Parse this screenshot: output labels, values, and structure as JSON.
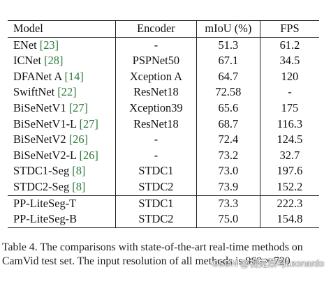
{
  "table": {
    "headers": {
      "model": "Model",
      "encoder": "Encoder",
      "miou": "mIoU (%)",
      "fps": "FPS"
    },
    "rows": [
      {
        "name": "ENet ",
        "ref": "[23]",
        "encoder": "-",
        "miou": "51.3",
        "fps": "61.2"
      },
      {
        "name": "ICNet ",
        "ref": "[28]",
        "encoder": "PSPNet50",
        "miou": "67.1",
        "fps": "34.5"
      },
      {
        "name": "DFANet A ",
        "ref": "[14]",
        "encoder": "Xception A",
        "miou": "64.7",
        "fps": "120"
      },
      {
        "name": "SwiftNet ",
        "ref": "[22]",
        "encoder": "ResNet18",
        "miou": "72.58",
        "fps": "-"
      },
      {
        "name": "BiSeNetV1 ",
        "ref": "[27]",
        "encoder": "Xception39",
        "miou": "65.6",
        "fps": "175"
      },
      {
        "name": "BiSeNetV1-L ",
        "ref": "[27]",
        "encoder": "ResNet18",
        "miou": "68.7",
        "fps": "116.3"
      },
      {
        "name": "BiSeNetV2 ",
        "ref": "[26]",
        "encoder": "-",
        "miou": "72.4",
        "fps": "124.5"
      },
      {
        "name": "BiSeNetV2-L ",
        "ref": "[26]",
        "encoder": "-",
        "miou": "73.2",
        "fps": "32.7"
      },
      {
        "name": "STDC1-Seg ",
        "ref": "[8]",
        "encoder": "STDC1",
        "miou": "73.0",
        "fps": "197.6"
      },
      {
        "name": "STDC2-Seg ",
        "ref": "[8]",
        "encoder": "STDC2",
        "miou": "73.9",
        "fps": "152.2"
      },
      {
        "name": "PP-LiteSeg-T",
        "ref": "",
        "encoder": "STDC1",
        "miou": "73.3",
        "fps": "222.3"
      },
      {
        "name": "PP-LiteSeg-B",
        "ref": "",
        "encoder": "STDC2",
        "miou": "75.0",
        "fps": "154.8"
      }
    ]
  },
  "caption": "Table 4. The comparisons with state-of-the-art real-time methods on CamVid test set. The input resolution of all methods is 960 × 720.",
  "watermark": "CSDN @视觉菜鸟Leonardo",
  "colors": {
    "reference_link": "#2a7a3a"
  }
}
